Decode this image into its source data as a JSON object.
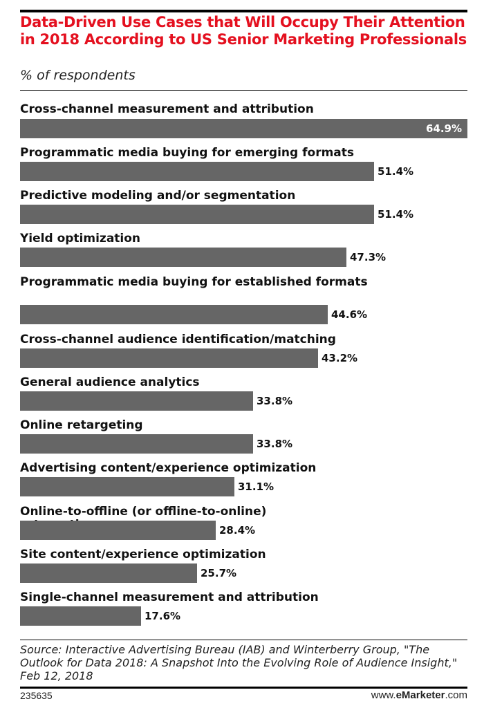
{
  "title": "Data-Driven Use Cases that Will Occupy Their Attention in 2018 According to US Senior Marketing Professionals",
  "subtitle": "% of respondents",
  "colors": {
    "title": "#e4101f",
    "bar": "#666666",
    "rule": "#000000"
  },
  "chart_data": {
    "type": "bar",
    "orientation": "horizontal",
    "title": "Data-Driven Use Cases that Will Occupy Their Attention in 2018 According to US Senior Marketing Professionals",
    "subtitle": "% of respondents",
    "categories": [
      "Cross-channel measurement and attribution",
      "Programmatic media buying for emerging formats",
      "Predictive modeling and/or segmentation",
      "Yield optimization",
      "Programmatic media buying for established formats",
      "Cross-channel audience identification/matching",
      "General audience analytics",
      "Online retargeting",
      "Advertising content/experience optimization",
      "Online-to-offline (or offline-to-online) retargeting",
      "Site content/experience optimization",
      "Single-channel measurement and attribution"
    ],
    "values": [
      64.9,
      51.4,
      51.4,
      47.3,
      44.6,
      43.2,
      33.8,
      33.8,
      31.1,
      28.4,
      25.7,
      17.6
    ],
    "value_labels": [
      "64.9%",
      "51.4%",
      "51.4%",
      "47.3%",
      "44.6%",
      "43.2%",
      "33.8%",
      "33.8%",
      "31.1%",
      "28.4%",
      "25.7%",
      "17.6%"
    ],
    "xlim": [
      0,
      64.9
    ],
    "grid": false,
    "legend": "none"
  },
  "source": "Source: Interactive Advertising Bureau (IAB) and Winterberry Group, \"The Outlook for Data 2018: A Snapshot Into the Evolving Role of Audience Insight,\" Feb 12, 2018",
  "footer": {
    "chart_id": "235635",
    "brand_prefix": "www.",
    "brand_name": "eMarketer",
    "brand_suffix": ".com"
  }
}
